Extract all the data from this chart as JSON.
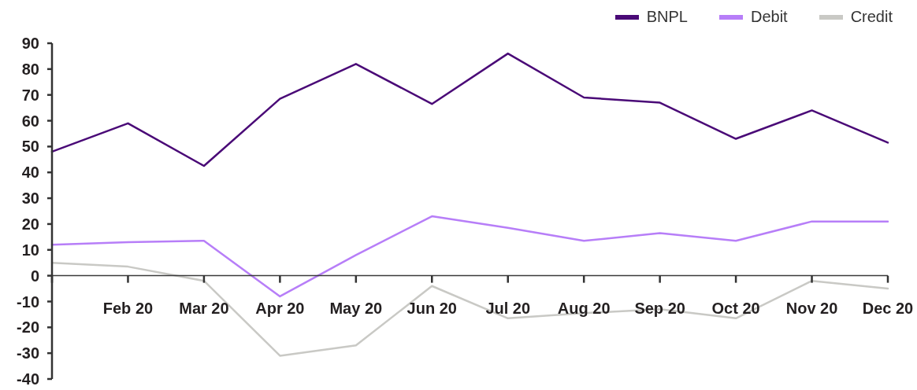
{
  "chart_data": {
    "type": "line",
    "categories": [
      null,
      "Feb 20",
      "Mar 20",
      "Apr 20",
      "May 20",
      "Jun 20",
      "Jul 20",
      "Aug 20",
      "Sep 20",
      "Oct 20",
      "Nov 20",
      "Dec 20"
    ],
    "series": [
      {
        "name": "BNPL",
        "color": "#4a0a77",
        "values": [
          48,
          59,
          42.5,
          68.5,
          82,
          66.5,
          86,
          69,
          67,
          53,
          64,
          51.5
        ]
      },
      {
        "name": "Debit",
        "color": "#b77ef8",
        "values": [
          12,
          13,
          13.5,
          -8,
          8,
          23,
          18.5,
          13.5,
          16.5,
          13.5,
          21,
          21
        ]
      },
      {
        "name": "Credit",
        "color": "#c9c9c5",
        "values": [
          5,
          3.5,
          -2,
          -31,
          -27,
          -4,
          -16.5,
          -14.5,
          -13,
          -16.5,
          -2,
          -5
        ]
      }
    ],
    "ylim": [
      -40,
      90
    ],
    "yticks": [
      -40,
      -30,
      -20,
      -10,
      0,
      10,
      20,
      30,
      40,
      50,
      60,
      70,
      80,
      90
    ],
    "legend": "top right",
    "marker": "none"
  }
}
